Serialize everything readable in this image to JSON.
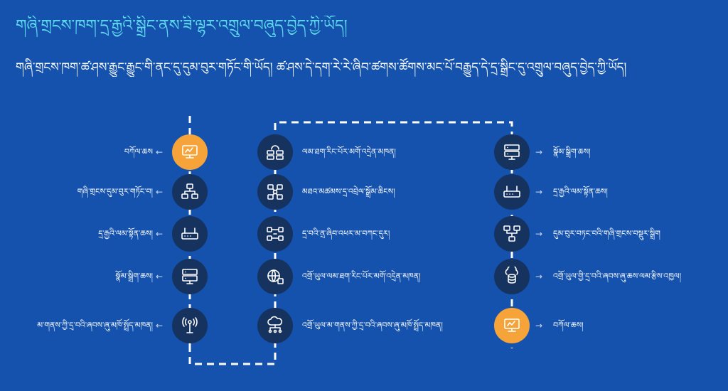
{
  "header": {
    "title": "གཞི་གྲངས་ཁག་དྲ་རྒྱའི་སྒྲིང་ནས་ཟི་ལྷར་འགྲུལ་བཞུད་བྱེད་ཀྱི་ཡོད།",
    "subtitle": "གཞི་གྲངས་ཁག་ཚ་ཤས་རྒྱུང་རྒྱུང་གི་ནང་དུ་དུམ་བུར་གཏོང་གི་ཡོད། ཚ་ཤས་དེ་དག་རེ་རེ་ཞིབ་ཚགས་ཚོགས་མང་པོ་བརྒྱུད་དེ་དྲ་སྒྲིང་དུ་འགྲུལ་བཞུད་བྱེད་ཀྱི་ཡོད།"
  },
  "colors": {
    "background": "#1452ad",
    "node": "#16325f",
    "highlight": "#f6a43a",
    "title": "#5fdcf0",
    "connector": "#ffffff"
  },
  "flow": {
    "left": [
      {
        "label": "བཀོལ་ཆས",
        "icon": "computer-icon",
        "highlight": true
      },
      {
        "label": "གཞི་གྲངས་དུམ་བུར་གཏོང་བ།",
        "icon": "data-split-icon",
        "highlight": false
      },
      {
        "label": "དྲ་རྒྱའི་ལམ་སྟོན་ཆས།",
        "icon": "router-icon",
        "highlight": false
      },
      {
        "label": "སྣོམ་སྒྲིག་ཆས།",
        "icon": "switch-icon",
        "highlight": false
      },
      {
        "label": "མ་གནས་ཀྱི་དྲ་བའི་ཞབས་ཞུ་མཁོ་སྤྲོད་མཁན།",
        "icon": "antenna-icon",
        "highlight": false
      }
    ],
    "middle": [
      {
        "label": "ལམ་ཐག་རིང་པོར་མགོ་འདྲེན་མཁན།",
        "icon": "cloud-server-icon"
      },
      {
        "label": "མཐའ་མཚམས་དྲ་འབྲེལ་སྒྲོམ་ཆིངས།",
        "icon": "network-grid-icon"
      },
      {
        "label": "དྲ་བའི་ནྲ་ཞིབ་འཕར་མ་བཀང་དུར།",
        "icon": "exchange-icon"
      },
      {
        "label": "འགྲོ་ཡུལ་ལམ་ཐག་རིང་པོར་མགོ་འདྲེན་མཁན།",
        "icon": "globe-server-icon"
      },
      {
        "label": "འགྲོ་ཡུལ་མ་གནས་ཀྱི་དྲ་བའི་ཞབས་ཞུ་མཁོ་སྤྲོད་མཁན།",
        "icon": "cloud-network-icon"
      }
    ],
    "right": [
      {
        "label": "སྣོམ་སྒྲིག་ཆས།",
        "icon": "switch-icon",
        "highlight": false
      },
      {
        "label": "དྲ་རྒྱའི་ལམ་སྟོན་ཆས།",
        "icon": "router-icon",
        "highlight": false
      },
      {
        "label": "དུམ་བུར་བཏང་བའི་གཞི་གྲངས་བསྡུར་སྒྲིག",
        "icon": "data-merge-icon",
        "highlight": false
      },
      {
        "label": "འགྲོ་ཡུལ་གྱི་དྲ་བའི་ཞབས་ཞུ་ཆས་ལམ་རྩིས་འཁྱལ།",
        "icon": "cloud-database-icon",
        "highlight": false
      },
      {
        "label": "བཀོལ་ཆས།",
        "icon": "computer-icon",
        "highlight": true
      }
    ]
  }
}
